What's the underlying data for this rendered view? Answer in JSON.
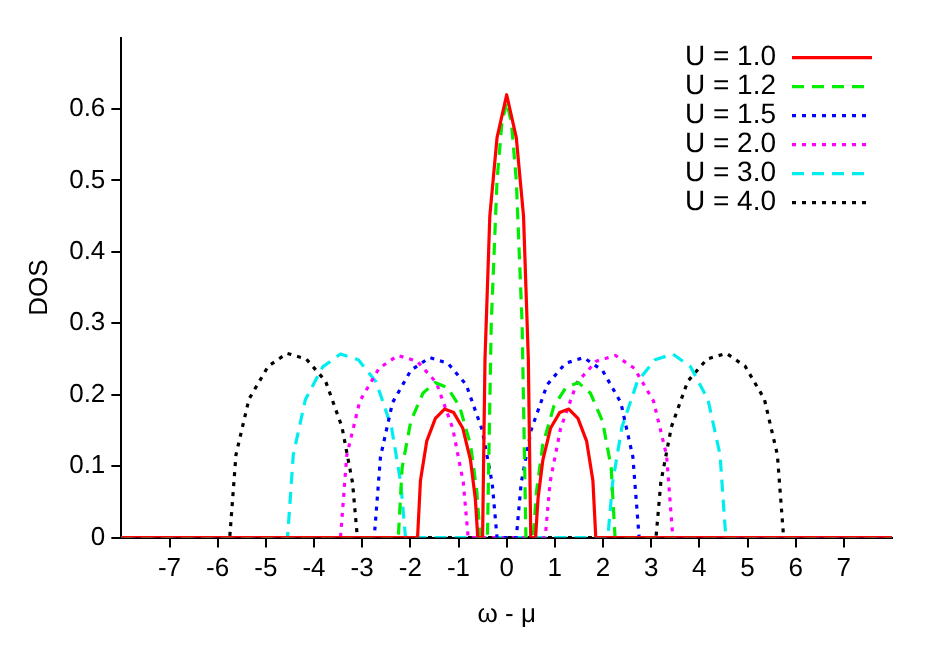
{
  "chart_data": {
    "type": "line",
    "xlabel": "ω - μ",
    "ylabel": "DOS",
    "xlim": [
      -8,
      8
    ],
    "xticks": [
      -7,
      -6,
      -5,
      -4,
      -3,
      -2,
      -1,
      0,
      1,
      2,
      3,
      4,
      5,
      6,
      7
    ],
    "ylim": [
      0,
      0.7
    ],
    "yticks": [
      0,
      0.1,
      0.2,
      0.3,
      0.4,
      0.5,
      0.6
    ],
    "grid": false,
    "legend": "top right",
    "marker": "none",
    "series": [
      {
        "name": "U = 1.0",
        "color": "#ff0000",
        "line_style": "solid",
        "x": [
          -8,
          -1.85,
          -1.79,
          -1.66,
          -1.48,
          -1.29,
          -1.1,
          -0.91,
          -0.75,
          -0.65,
          -0.6,
          -0.5,
          -0.45,
          -0.35,
          -0.2,
          0,
          0.2,
          0.35,
          0.45,
          0.5,
          0.6,
          0.65,
          0.75,
          0.91,
          1.1,
          1.29,
          1.48,
          1.66,
          1.79,
          1.85,
          8
        ],
        "values": [
          0,
          0,
          0.08,
          0.135,
          0.167,
          0.18,
          0.175,
          0.153,
          0.108,
          0.054,
          0,
          0,
          0.25,
          0.45,
          0.56,
          0.62,
          0.56,
          0.45,
          0.25,
          0,
          0,
          0.054,
          0.108,
          0.153,
          0.175,
          0.18,
          0.167,
          0.135,
          0.08,
          0,
          0
        ]
      },
      {
        "name": "U = 1.2",
        "color": "#00ee00",
        "line_style": "dashed",
        "x": [
          -8,
          -2.25,
          -2.17,
          -1.99,
          -1.74,
          -1.49,
          -1.23,
          -0.98,
          -0.75,
          -0.62,
          -0.55,
          -0.4,
          -0.32,
          -0.2,
          -0.1,
          0,
          0.1,
          0.2,
          0.32,
          0.4,
          0.55,
          0.62,
          0.75,
          0.98,
          1.23,
          1.49,
          1.74,
          1.99,
          2.17,
          2.25,
          8
        ],
        "values": [
          0,
          0,
          0.098,
          0.163,
          0.202,
          0.217,
          0.21,
          0.184,
          0.13,
          0.065,
          0,
          0,
          0.3,
          0.5,
          0.58,
          0.61,
          0.58,
          0.5,
          0.3,
          0,
          0,
          0.065,
          0.13,
          0.184,
          0.21,
          0.217,
          0.202,
          0.163,
          0.098,
          0,
          0
        ]
      },
      {
        "name": "U = 1.5",
        "color": "#0000ff",
        "line_style": "dotted",
        "x": [
          -8,
          -2.75,
          -2.62,
          -2.37,
          -1.99,
          -1.6,
          -1.22,
          -0.84,
          -0.51,
          -0.3,
          -0.2,
          0.2,
          0.3,
          0.51,
          0.84,
          1.22,
          1.6,
          1.99,
          2.37,
          2.62,
          2.75,
          8
        ],
        "values": [
          0,
          0,
          0.113,
          0.189,
          0.234,
          0.252,
          0.244,
          0.214,
          0.151,
          0.076,
          0,
          0,
          0.076,
          0.151,
          0.214,
          0.244,
          0.252,
          0.234,
          0.189,
          0.113,
          0,
          0
        ]
      },
      {
        "name": "U = 2.0",
        "color": "#ff00ff",
        "line_style": "dotted",
        "x": [
          -8,
          -3.45,
          -3.32,
          -3.05,
          -2.65,
          -2.26,
          -1.86,
          -1.46,
          -1.12,
          -0.9,
          -0.8,
          0.8,
          0.9,
          1.12,
          1.46,
          1.86,
          2.26,
          2.65,
          3.05,
          3.32,
          3.45,
          8
        ],
        "values": [
          0,
          0,
          0.115,
          0.191,
          0.237,
          0.255,
          0.247,
          0.217,
          0.153,
          0.077,
          0,
          0,
          0.077,
          0.153,
          0.217,
          0.247,
          0.255,
          0.237,
          0.191,
          0.115,
          0,
          0
        ]
      },
      {
        "name": "U = 3.0",
        "color": "#00eeee",
        "line_style": "dashed",
        "x": [
          -8,
          -4.55,
          -4.43,
          -4.18,
          -3.82,
          -3.45,
          -3.08,
          -2.71,
          -2.39,
          -2.2,
          -2.1,
          2.1,
          2.2,
          2.39,
          2.71,
          3.08,
          3.45,
          3.82,
          4.18,
          4.43,
          4.55,
          8
        ],
        "values": [
          0,
          0,
          0.116,
          0.193,
          0.239,
          0.257,
          0.249,
          0.218,
          0.154,
          0.077,
          0,
          0,
          0.077,
          0.154,
          0.218,
          0.249,
          0.257,
          0.239,
          0.193,
          0.116,
          0,
          0
        ]
      },
      {
        "name": "U = 4.0",
        "color": "#000000",
        "line_style": "dotted",
        "x": [
          -8,
          -5.75,
          -5.62,
          -5.35,
          -4.95,
          -4.56,
          -4.16,
          -3.76,
          -3.42,
          -3.2,
          -3.1,
          3.1,
          3.2,
          3.42,
          3.76,
          4.16,
          4.56,
          4.95,
          5.35,
          5.62,
          5.75,
          8
        ],
        "values": [
          0,
          0,
          0.116,
          0.194,
          0.24,
          0.258,
          0.25,
          0.219,
          0.155,
          0.077,
          0,
          0,
          0.077,
          0.155,
          0.219,
          0.25,
          0.258,
          0.24,
          0.194,
          0.116,
          0,
          0
        ]
      }
    ]
  }
}
